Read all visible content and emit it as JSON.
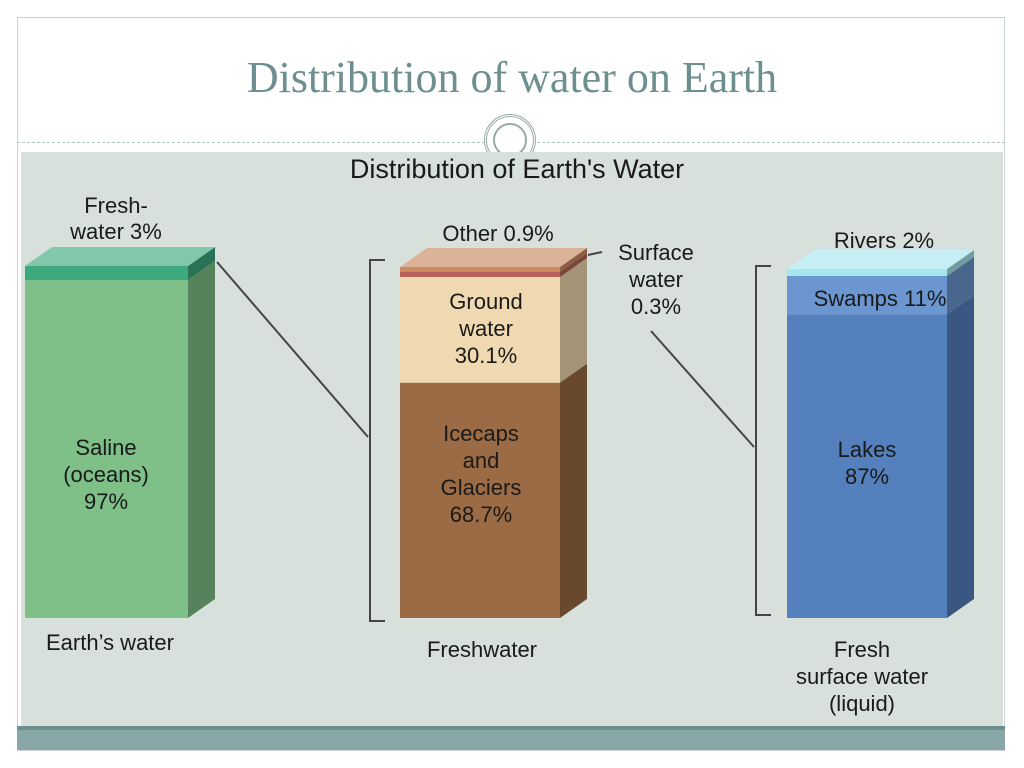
{
  "slide": {
    "title": "Distribution of water on Earth"
  },
  "chart_data": {
    "type": "bar",
    "title": "Distribution of Earth's Water",
    "unit": "%",
    "columns": [
      {
        "name": "Earth’s water",
        "segments": [
          {
            "label": [
              "Saline",
              "(oceans)",
              "97%"
            ],
            "value": 97,
            "color": "#7fbf88"
          },
          {
            "label": [
              "Fresh-",
              "water 3%"
            ],
            "value": 3,
            "color": "#3ea87e"
          }
        ]
      },
      {
        "name": "Freshwater",
        "segments": [
          {
            "label": [
              "Icecaps",
              "and",
              "Glaciers",
              "68.7%"
            ],
            "value": 68.7,
            "color": "#9a6b44"
          },
          {
            "label": [
              "Ground",
              "water",
              "30.1%"
            ],
            "value": 30.1,
            "color": "#f0d9b0"
          },
          {
            "label": [
              "Surface",
              "water",
              "0.3%"
            ],
            "value": 0.3,
            "color": "#b8635a"
          },
          {
            "label": [
              "Other 0.9%"
            ],
            "value": 0.9,
            "color": "#c98a60"
          }
        ]
      },
      {
        "name": [
          "Fresh",
          "surface water",
          "(liquid)"
        ],
        "segments": [
          {
            "label": [
              "Lakes",
              "87%"
            ],
            "value": 87,
            "color": "#5480bd"
          },
          {
            "label": [
              "Swamps 11%"
            ],
            "value": 11,
            "color": "#6b96cf"
          },
          {
            "label": [
              "Rivers 2%"
            ],
            "value": 2,
            "color": "#a6e6ee"
          }
        ]
      }
    ]
  }
}
